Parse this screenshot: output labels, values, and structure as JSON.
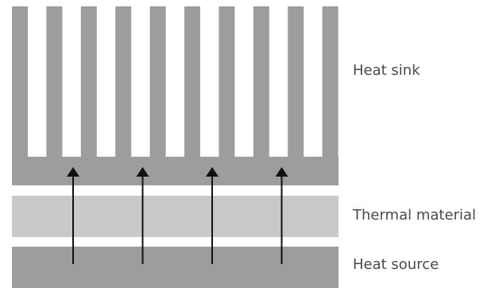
{
  "labels": {
    "heat_sink": "Heat sink",
    "thermal_material": "Thermal material",
    "heat_source": "Heat source"
  },
  "colors": {
    "heat_sink": "#9d9d9e",
    "thermal_material": "#c9c9ca",
    "heat_source": "#9d9d9e",
    "arrow": "#111111"
  },
  "fin_count": 10,
  "arrow_count": 4
}
